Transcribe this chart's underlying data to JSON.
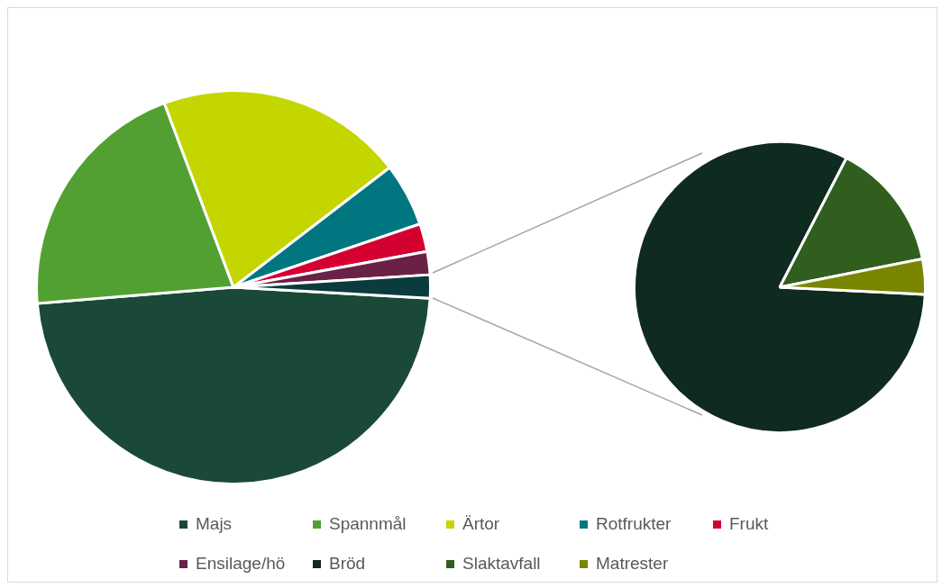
{
  "chart_data": [
    {
      "type": "pie",
      "categories": [
        "Majs",
        "Spannmål",
        "Ärtor",
        "Rotfrukter",
        "Frukt",
        "Ensilage/hö",
        null
      ],
      "values": [
        47.8,
        20.6,
        20.3,
        5.2,
        2.3,
        1.9,
        1.9
      ],
      "colors": [
        "#1a4a37",
        "#52a032",
        "#c4d600",
        "#007681",
        "#d50032",
        "#6a2146",
        "#0b3b3d"
      ],
      "legend": "bottom"
    },
    {
      "type": "pie",
      "categories": [
        "Bröd",
        "Slaktavfall",
        "Matrester"
      ],
      "values": [
        81.8,
        14.3,
        3.9
      ],
      "colors": [
        "#0f2a1f",
        "#2f5e1e",
        "#7a8500"
      ],
      "legend": "bottom"
    }
  ]
}
